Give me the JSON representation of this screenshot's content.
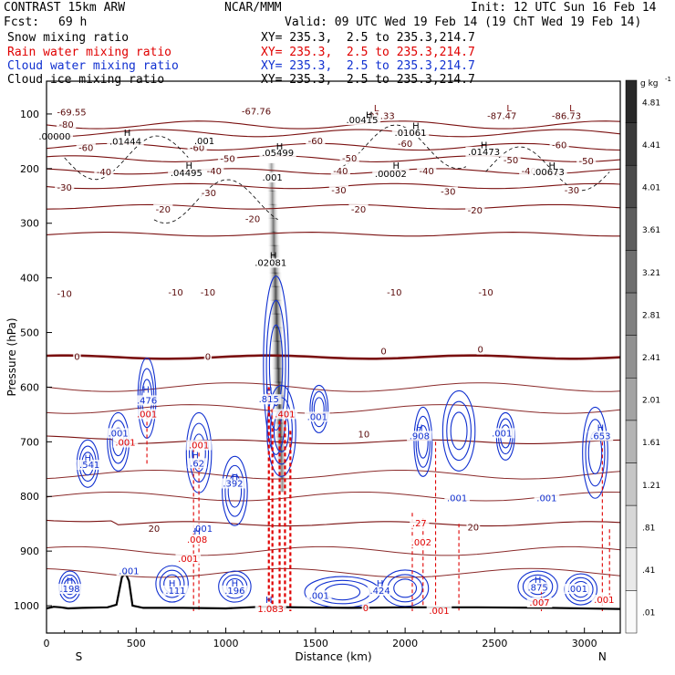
{
  "header": {
    "model": "CONTRAST 15km ARW",
    "org": "NCAR/MMM",
    "init": "Init: 12 UTC Sun 16 Feb 14",
    "fcst_label": "Fcst:",
    "fcst_value": "69 h",
    "valid": "Valid: 09 UTC Wed 19 Feb 14 (19 ChT Wed 19 Feb 14)",
    "fields": [
      {
        "name": "Snow mixing ratio",
        "xy": "XY= 235.3,  2.5 to 235.3,214.7",
        "color": "#000000"
      },
      {
        "name": "Rain water mixing ratio",
        "xy": "XY= 235.3,  2.5 to 235.3,214.7",
        "color": "#e00000"
      },
      {
        "name": "Cloud water mixing ratio",
        "xy": "XY= 235.3,  2.5 to 235.3,214.7",
        "color": "#1030d0"
      },
      {
        "name": "Cloud ice mixing ratio",
        "xy": "XY= 235.3,  2.5 to 235.3,214.7",
        "color": "#000000"
      }
    ]
  },
  "chart_data": {
    "type": "contour",
    "xlabel": "Distance (km)",
    "ylabel": "Pressure (hPa)",
    "xlim": [
      0,
      3200
    ],
    "ylim": [
      1050,
      40
    ],
    "x_ticks": [
      0,
      500,
      1000,
      1500,
      2000,
      2500,
      3000
    ],
    "y_ticks": [
      100,
      200,
      300,
      400,
      500,
      600,
      700,
      800,
      900,
      1000
    ],
    "x_end_labels": {
      "left": "S",
      "right": "N"
    },
    "colorbar": {
      "unit": "g kg",
      "unit_exp": "-1",
      "labels": [
        "4.81",
        "4.41",
        "4.01",
        "3.61",
        "3.21",
        "2.81",
        "2.41",
        "2.01",
        "1.61",
        "1.21",
        ".81",
        ".41",
        ".01"
      ]
    },
    "temperature_contours": [
      {
        "t": -80,
        "p": 120
      },
      {
        "t": -70,
        "p": 135
      },
      {
        "t": -60,
        "p": 160
      },
      {
        "t": -50,
        "p": 182
      },
      {
        "t": -40,
        "p": 205
      },
      {
        "t": -30,
        "p": 232
      },
      {
        "t": -20,
        "p": 270
      },
      {
        "t": -10,
        "p": 320
      },
      {
        "t": 0,
        "p": 545
      },
      {
        "t": 10,
        "p": 700
      },
      {
        "t": 20,
        "p": 850
      }
    ],
    "temperature_labels": [
      {
        "text": "-69.55",
        "x": 140,
        "p": 103
      },
      {
        "text": "-67.76",
        "x": 1170,
        "p": 101
      },
      {
        "text": "-91.33",
        "x": 1860,
        "p": 109
      },
      {
        "text": "-87.47",
        "x": 2540,
        "p": 109
      },
      {
        "text": "-86.73",
        "x": 2900,
        "p": 109
      },
      {
        "text": "-80",
        "x": 110,
        "p": 125
      },
      {
        "text": "-60",
        "x": 220,
        "p": 168
      },
      {
        "text": "-60",
        "x": 840,
        "p": 168
      },
      {
        "text": "-60",
        "x": 1500,
        "p": 155
      },
      {
        "text": "-60",
        "x": 2000,
        "p": 160
      },
      {
        "text": "-60",
        "x": 2860,
        "p": 163
      },
      {
        "text": "-50",
        "x": 1010,
        "p": 188
      },
      {
        "text": "-50",
        "x": 1690,
        "p": 187
      },
      {
        "text": "-50",
        "x": 2590,
        "p": 190
      },
      {
        "text": "-50",
        "x": 3010,
        "p": 192
      },
      {
        "text": "-40",
        "x": 320,
        "p": 212
      },
      {
        "text": "-40",
        "x": 935,
        "p": 210
      },
      {
        "text": "-40",
        "x": 1640,
        "p": 210
      },
      {
        "text": "-40",
        "x": 2120,
        "p": 210
      },
      {
        "text": "-40",
        "x": 2690,
        "p": 210
      },
      {
        "text": "-30",
        "x": 100,
        "p": 240
      },
      {
        "text": "-30",
        "x": 905,
        "p": 250
      },
      {
        "text": "-30",
        "x": 1630,
        "p": 245
      },
      {
        "text": "-30",
        "x": 2240,
        "p": 248
      },
      {
        "text": "-30",
        "x": 2930,
        "p": 245
      },
      {
        "text": "-20",
        "x": 650,
        "p": 280
      },
      {
        "text": "-20",
        "x": 1150,
        "p": 298
      },
      {
        "text": "-20",
        "x": 1740,
        "p": 280
      },
      {
        "text": "-20",
        "x": 2390,
        "p": 282
      },
      {
        "text": "-10",
        "x": 100,
        "p": 435
      },
      {
        "text": "-10",
        "x": 720,
        "p": 432
      },
      {
        "text": "-10",
        "x": 900,
        "p": 432
      },
      {
        "text": "-10",
        "x": 1940,
        "p": 432
      },
      {
        "text": "-10",
        "x": 2450,
        "p": 432
      },
      {
        "text": "0",
        "x": 170,
        "p": 550
      },
      {
        "text": "0",
        "x": 900,
        "p": 550
      },
      {
        "text": "0",
        "x": 1880,
        "p": 540
      },
      {
        "text": "0",
        "x": 2420,
        "p": 537
      },
      {
        "text": "10",
        "x": 1770,
        "p": 692
      },
      {
        "text": "20",
        "x": 600,
        "p": 865
      },
      {
        "text": "20",
        "x": 2380,
        "p": 862
      }
    ],
    "snow_labels": [
      {
        "text": ".00000",
        "x": 45,
        "p": 147
      },
      {
        "text": ".01444",
        "x": 440,
        "p": 156
      },
      {
        "text": ".001",
        "x": 880,
        "p": 155
      },
      {
        "text": ".05499",
        "x": 1290,
        "p": 177
      },
      {
        "text": ".00415",
        "x": 1760,
        "p": 117
      },
      {
        "text": ".01061",
        "x": 2030,
        "p": 140
      },
      {
        "text": ".01473",
        "x": 2440,
        "p": 175
      },
      {
        "text": ".04495",
        "x": 780,
        "p": 214
      },
      {
        "text": ".001",
        "x": 1260,
        "p": 222
      },
      {
        "text": ".00002",
        "x": 1920,
        "p": 215
      },
      {
        "text": ".00673",
        "x": 2800,
        "p": 212
      },
      {
        "text": ".02081",
        "x": 1250,
        "p": 378
      }
    ],
    "cloud_water_labels": [
      {
        "text": ".476",
        "x": 560,
        "p": 630
      },
      {
        "text": ".815",
        "x": 1240,
        "p": 628
      },
      {
        "text": ".001",
        "x": 1510,
        "p": 660
      },
      {
        "text": ".001",
        "x": 400,
        "p": 690
      },
      {
        "text": ".908",
        "x": 2080,
        "p": 695
      },
      {
        "text": ".001",
        "x": 2540,
        "p": 690
      },
      {
        "text": ".653",
        "x": 3090,
        "p": 695
      },
      {
        "text": ".541",
        "x": 240,
        "p": 748
      },
      {
        "text": ".62",
        "x": 840,
        "p": 745
      },
      {
        "text": ".392",
        "x": 1040,
        "p": 782
      },
      {
        "text": ".001",
        "x": 2290,
        "p": 809
      },
      {
        "text": ".001",
        "x": 2790,
        "p": 809
      },
      {
        "text": ".001",
        "x": 870,
        "p": 865
      },
      {
        "text": ".001",
        "x": 460,
        "p": 942
      },
      {
        "text": ".198",
        "x": 130,
        "p": 975
      },
      {
        "text": ".111",
        "x": 720,
        "p": 978
      },
      {
        "text": ".196",
        "x": 1050,
        "p": 978
      },
      {
        "text": ".001",
        "x": 1520,
        "p": 987
      },
      {
        "text": ".424",
        "x": 1860,
        "p": 978
      },
      {
        "text": ".875",
        "x": 2740,
        "p": 972
      },
      {
        "text": ".001",
        "x": 2960,
        "p": 975
      }
    ],
    "rain_labels": [
      {
        "text": ".001",
        "x": 560,
        "p": 655
      },
      {
        "text": ".001",
        "x": 440,
        "p": 707
      },
      {
        "text": ".001",
        "x": 850,
        "p": 712
      },
      {
        "text": ".401",
        "x": 1330,
        "p": 655
      },
      {
        "text": ".008",
        "x": 840,
        "p": 885
      },
      {
        "text": ".001",
        "x": 790,
        "p": 920
      },
      {
        "text": ".27",
        "x": 2080,
        "p": 855
      },
      {
        "text": ".002",
        "x": 2090,
        "p": 890
      },
      {
        "text": ".001",
        "x": 2190,
        "p": 1015
      },
      {
        "text": ".007",
        "x": 2750,
        "p": 1000
      },
      {
        "text": ".001",
        "x": 3110,
        "p": 995
      },
      {
        "text": "1.083",
        "x": 1250,
        "p": 1012
      },
      {
        "text": "0",
        "x": 1780,
        "p": 1010
      }
    ],
    "max_markers": [
      {
        "type": "L",
        "x": 1840,
        "p": 95
      },
      {
        "type": "L",
        "x": 2580,
        "p": 95
      },
      {
        "type": "L",
        "x": 2930,
        "p": 95
      },
      {
        "type": "H",
        "x": 1800,
        "p": 108
      },
      {
        "type": "H",
        "x": 2060,
        "p": 128
      },
      {
        "type": "H",
        "x": 450,
        "p": 140
      },
      {
        "type": "H",
        "x": 1300,
        "p": 165
      },
      {
        "type": "H",
        "x": 2440,
        "p": 163
      },
      {
        "type": "H",
        "x": 795,
        "p": 200
      },
      {
        "type": "H",
        "x": 1950,
        "p": 200
      },
      {
        "type": "H",
        "x": 2820,
        "p": 200
      },
      {
        "type": "H",
        "x": 1265,
        "p": 365
      },
      {
        "type": "H",
        "x": 555,
        "p": 610
      },
      {
        "type": "H",
        "x": 1240,
        "p": 612
      },
      {
        "type": "H",
        "x": 2080,
        "p": 680
      },
      {
        "type": "H",
        "x": 3090,
        "p": 680
      },
      {
        "type": "H",
        "x": 230,
        "p": 735
      },
      {
        "type": "H",
        "x": 830,
        "p": 730
      },
      {
        "type": "H",
        "x": 1050,
        "p": 770
      },
      {
        "type": "H",
        "x": 130,
        "p": 960
      },
      {
        "type": "H",
        "x": 700,
        "p": 965
      },
      {
        "type": "H",
        "x": 1050,
        "p": 965
      },
      {
        "type": "H",
        "x": 1860,
        "p": 965
      },
      {
        "type": "H",
        "x": 2740,
        "p": 958
      },
      {
        "type": "H",
        "x": 1240,
        "p": 995
      },
      {
        "type": "H",
        "x": 840,
        "p": 870
      }
    ],
    "terrain": [
      [
        0,
        1005
      ],
      [
        40,
        1002
      ],
      [
        80,
        1003
      ],
      [
        120,
        1005
      ],
      [
        200,
        1004
      ],
      [
        340,
        1003
      ],
      [
        390,
        998
      ],
      [
        420,
        948
      ],
      [
        440,
        940
      ],
      [
        460,
        955
      ],
      [
        480,
        1000
      ],
      [
        540,
        1004
      ],
      [
        760,
        1004
      ],
      [
        1000,
        1005
      ],
      [
        1200,
        1002
      ],
      [
        1400,
        1003
      ],
      [
        1700,
        1004
      ],
      [
        2000,
        1003
      ],
      [
        2400,
        1003
      ],
      [
        2800,
        1004
      ],
      [
        3200,
        1006
      ]
    ]
  }
}
